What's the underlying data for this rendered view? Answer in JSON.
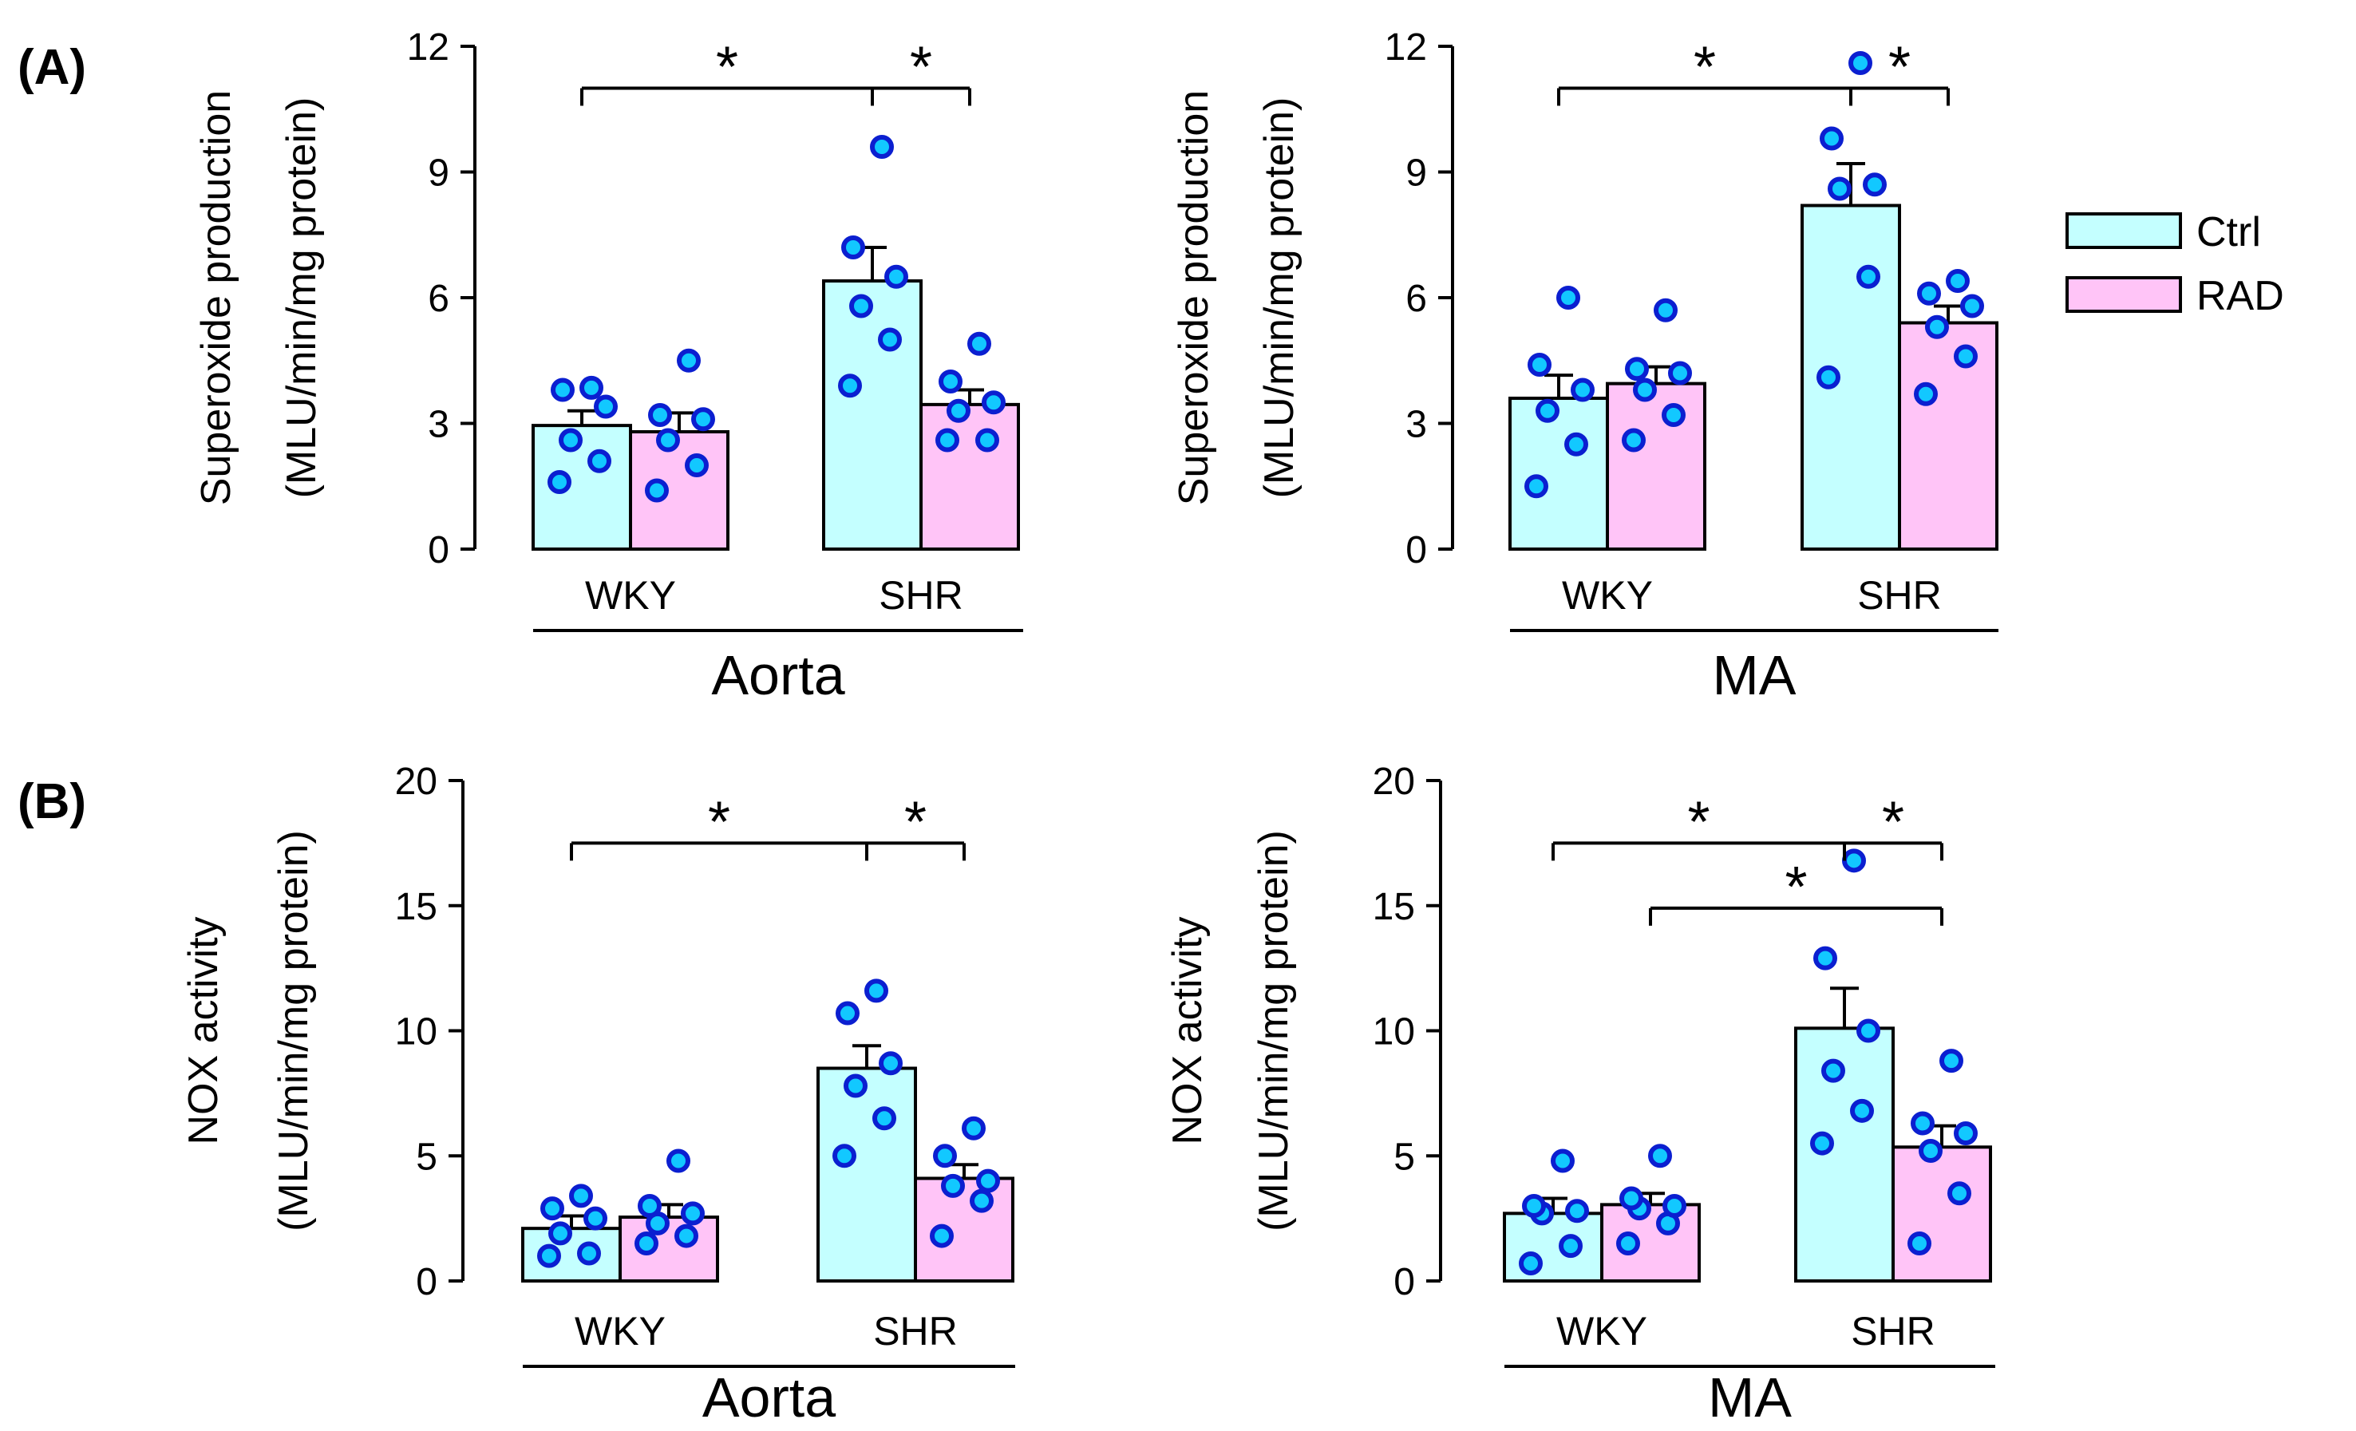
{
  "colors": {
    "ctrl": "#c4ffff",
    "rad": "#ffc4f7",
    "dot_fill": "#12c8ff",
    "dot_stroke": "#0b1fd0"
  },
  "legend": {
    "items": [
      "Ctrl",
      "RAD"
    ]
  },
  "panel_labels": [
    "(A)",
    "(B)"
  ],
  "chart_data": [
    {
      "type": "bar",
      "panel": "(A)",
      "tissue": "Aorta",
      "categories": [
        "WKY",
        "SHR"
      ],
      "ylabel_line1": "Superoxide production",
      "ylabel_line2": "(MLU/min/mg protein)",
      "ylim": [
        0,
        12
      ],
      "yticks": [
        "0",
        "3",
        "6",
        "9",
        "12"
      ],
      "series": [
        {
          "name": "Ctrl",
          "values": [
            2.95,
            6.4
          ],
          "errors": [
            0.35,
            0.8
          ],
          "points": [
            [
              1.6,
              2.1,
              2.6,
              3.4,
              3.8,
              3.85
            ],
            [
              3.9,
              5.0,
              5.8,
              6.5,
              7.2,
              9.6
            ]
          ]
        },
        {
          "name": "RAD",
          "values": [
            2.8,
            3.45
          ],
          "errors": [
            0.45,
            0.35
          ],
          "points": [
            [
              1.4,
              2.0,
              2.6,
              3.1,
              3.2,
              4.5
            ],
            [
              2.6,
              2.6,
              3.3,
              3.5,
              4.0,
              4.9
            ]
          ]
        }
      ],
      "significance": [
        {
          "label": "*",
          "from": "WKY-Ctrl",
          "to": "SHR-Ctrl",
          "y": 11.0
        },
        {
          "label": "*",
          "from": "SHR-Ctrl",
          "to": "SHR-RAD",
          "y": 11.0
        }
      ]
    },
    {
      "type": "bar",
      "panel": "(A)",
      "tissue": "MA",
      "categories": [
        "WKY",
        "SHR"
      ],
      "ylabel_line1": "Superoxide production",
      "ylabel_line2": "(MLU/min/mg protein)",
      "ylim": [
        0,
        12
      ],
      "yticks": [
        "0",
        "3",
        "6",
        "9",
        "12"
      ],
      "series": [
        {
          "name": "Ctrl",
          "values": [
            3.6,
            8.2
          ],
          "errors": [
            0.55,
            1.0
          ],
          "points": [
            [
              1.5,
              2.5,
              3.3,
              3.8,
              4.4,
              6.0
            ],
            [
              4.1,
              6.5,
              8.6,
              8.7,
              9.8,
              11.6
            ]
          ]
        },
        {
          "name": "RAD",
          "values": [
            3.95,
            5.4
          ],
          "errors": [
            0.4,
            0.4
          ],
          "points": [
            [
              2.6,
              3.2,
              3.8,
              4.2,
              4.3,
              5.7
            ],
            [
              3.7,
              4.6,
              5.3,
              5.8,
              6.1,
              6.4
            ]
          ]
        }
      ],
      "significance": [
        {
          "label": "*",
          "from": "WKY-Ctrl",
          "to": "SHR-Ctrl",
          "y": 11.0
        },
        {
          "label": "*",
          "from": "SHR-Ctrl",
          "to": "SHR-RAD",
          "y": 11.0
        }
      ]
    },
    {
      "type": "bar",
      "panel": "(B)",
      "tissue": "Aorta",
      "categories": [
        "WKY",
        "SHR"
      ],
      "ylabel_line1": "NOX activity",
      "ylabel_line2": "(MLU/min/mg protein)",
      "ylim": [
        0,
        20
      ],
      "yticks": [
        "0",
        "5",
        "10",
        "15",
        "20"
      ],
      "series": [
        {
          "name": "Ctrl",
          "values": [
            2.1,
            8.5
          ],
          "errors": [
            0.5,
            0.9
          ],
          "points": [
            [
              1.0,
              1.1,
              1.9,
              2.5,
              2.9,
              3.4
            ],
            [
              5.0,
              6.5,
              7.8,
              8.7,
              10.7,
              11.6
            ]
          ]
        },
        {
          "name": "RAD",
          "values": [
            2.55,
            4.1
          ],
          "errors": [
            0.5,
            0.55
          ],
          "points": [
            [
              1.5,
              1.8,
              2.3,
              2.7,
              3.0,
              4.8
            ],
            [
              1.8,
              3.2,
              3.8,
              4.0,
              5.0,
              6.1
            ]
          ]
        }
      ],
      "significance": [
        {
          "label": "*",
          "from": "WKY-Ctrl",
          "to": "SHR-Ctrl",
          "y": 17.5
        },
        {
          "label": "*",
          "from": "SHR-Ctrl",
          "to": "SHR-RAD",
          "y": 17.5
        }
      ]
    },
    {
      "type": "bar",
      "panel": "(B)",
      "tissue": "MA",
      "categories": [
        "WKY",
        "SHR"
      ],
      "ylabel_line1": "NOX activity",
      "ylabel_line2": "(MLU/min/mg protein)",
      "ylim": [
        0,
        20
      ],
      "yticks": [
        "0",
        "5",
        "10",
        "15",
        "20"
      ],
      "series": [
        {
          "name": "Ctrl",
          "values": [
            2.7,
            10.1
          ],
          "errors": [
            0.6,
            1.6
          ],
          "points": [
            [
              0.7,
              1.4,
              2.7,
              2.8,
              3.0,
              4.8
            ],
            [
              5.5,
              6.8,
              8.4,
              10.0,
              12.9,
              16.8
            ]
          ]
        },
        {
          "name": "RAD",
          "values": [
            3.05,
            5.35
          ],
          "errors": [
            0.45,
            0.85
          ],
          "points": [
            [
              1.5,
              2.3,
              2.9,
              3.0,
              3.3,
              5.0
            ],
            [
              1.5,
              3.5,
              5.2,
              5.9,
              6.3,
              8.8
            ]
          ]
        }
      ],
      "significance": [
        {
          "label": "*",
          "from": "WKY-Ctrl",
          "to": "SHR-Ctrl",
          "y": 17.5
        },
        {
          "label": "*",
          "from": "SHR-Ctrl",
          "to": "SHR-RAD",
          "y": 17.5
        },
        {
          "label": "*",
          "from": "WKY-RAD",
          "to": "SHR-RAD",
          "y": 14.9
        }
      ]
    }
  ]
}
